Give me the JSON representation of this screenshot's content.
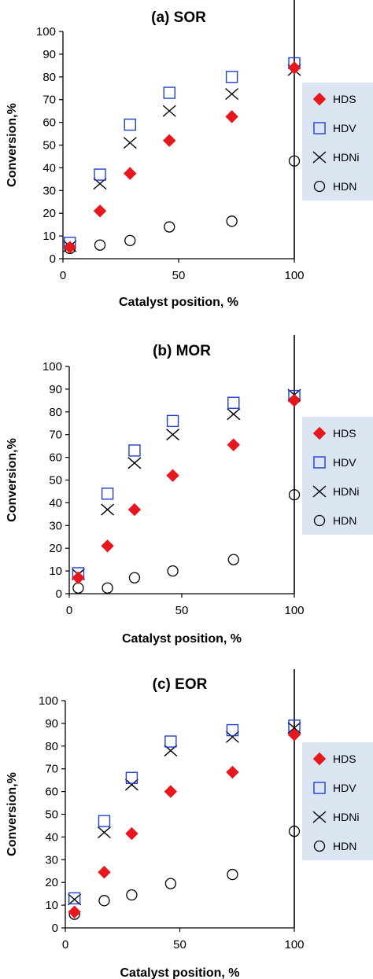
{
  "chart_data": [
    {
      "type": "scatter",
      "title": "(a) SOR",
      "xlabel": "Catalyst position, %",
      "ylabel": "Conversion,%",
      "xlim": [
        0,
        100
      ],
      "ylim": [
        0,
        100
      ],
      "xticks": [
        "0",
        "50",
        "100"
      ],
      "yticks": [
        "0",
        "10",
        "20",
        "30",
        "40",
        "50",
        "60",
        "70",
        "80",
        "90",
        "100"
      ],
      "grid": false,
      "legend_position": "right",
      "series": [
        {
          "name": "HDS",
          "marker": "diamond",
          "color": "#e8161d",
          "x": [
            3,
            16,
            29,
            46,
            73,
            100
          ],
          "y": [
            5,
            21,
            37.5,
            52,
            62.5,
            84
          ]
        },
        {
          "name": "HDV",
          "marker": "square",
          "color": "#1f3fd0",
          "x": [
            3,
            16,
            29,
            46,
            73,
            100
          ],
          "y": [
            7,
            37,
            59,
            73,
            80,
            86
          ]
        },
        {
          "name": "HDNi",
          "marker": "x",
          "color": "#000000",
          "x": [
            3,
            16,
            29,
            46,
            73,
            100
          ],
          "y": [
            5.5,
            33,
            51,
            65,
            72.5,
            83
          ]
        },
        {
          "name": "HDN",
          "marker": "circle",
          "color": "#000000",
          "x": [
            3,
            16,
            29,
            46,
            73,
            100
          ],
          "y": [
            4.5,
            6,
            8,
            14,
            16.5,
            43
          ]
        }
      ]
    },
    {
      "type": "scatter",
      "title": "(b) MOR",
      "xlabel": "Catalyst position, %",
      "ylabel": "Conversion,%",
      "xlim": [
        0,
        100
      ],
      "ylim": [
        0,
        100
      ],
      "xticks": [
        "0",
        "50",
        "100"
      ],
      "yticks": [
        "0",
        "10",
        "20",
        "30",
        "40",
        "50",
        "60",
        "70",
        "80",
        "90",
        "100"
      ],
      "grid": false,
      "legend_position": "right",
      "series": [
        {
          "name": "HDS",
          "marker": "diamond",
          "color": "#e8161d",
          "x": [
            4,
            17,
            29,
            46,
            73,
            100
          ],
          "y": [
            7,
            21,
            37,
            52,
            65.5,
            85
          ]
        },
        {
          "name": "HDV",
          "marker": "square",
          "color": "#1f3fd0",
          "x": [
            4,
            17,
            29,
            46,
            73,
            100
          ],
          "y": [
            9,
            44,
            63,
            76,
            84,
            87
          ]
        },
        {
          "name": "HDNi",
          "marker": "x",
          "color": "#000000",
          "x": [
            4,
            17,
            29,
            46,
            73,
            100
          ],
          "y": [
            8.5,
            37,
            57.5,
            70,
            79,
            87.5
          ]
        },
        {
          "name": "HDN",
          "marker": "circle",
          "color": "#000000",
          "x": [
            4,
            17,
            29,
            46,
            73,
            100
          ],
          "y": [
            2.5,
            2.5,
            7,
            10,
            15,
            43.5
          ]
        }
      ]
    },
    {
      "type": "scatter",
      "title": "(c) EOR",
      "xlabel": "Catalyst position, %",
      "ylabel": "Conversion,%",
      "xlim": [
        0,
        100
      ],
      "ylim": [
        0,
        100
      ],
      "xticks": [
        "0",
        "50",
        "100"
      ],
      "yticks": [
        "0",
        "10",
        "20",
        "30",
        "40",
        "50",
        "60",
        "70",
        "80",
        "90",
        "100"
      ],
      "grid": false,
      "legend_position": "right",
      "series": [
        {
          "name": "HDS",
          "marker": "diamond",
          "color": "#e8161d",
          "x": [
            4,
            17,
            29,
            46,
            73,
            100
          ],
          "y": [
            7,
            24.5,
            41.5,
            60,
            68.5,
            85
          ]
        },
        {
          "name": "HDV",
          "marker": "square",
          "color": "#1f3fd0",
          "x": [
            4,
            17,
            29,
            46,
            73,
            100
          ],
          "y": [
            13,
            47,
            66,
            82,
            87,
            89
          ]
        },
        {
          "name": "HDNi",
          "marker": "x",
          "color": "#000000",
          "x": [
            4,
            17,
            29,
            46,
            73,
            100
          ],
          "y": [
            12.5,
            42,
            63,
            78,
            84,
            88
          ]
        },
        {
          "name": "HDN",
          "marker": "circle",
          "color": "#000000",
          "x": [
            4,
            17,
            29,
            46,
            73,
            100
          ],
          "y": [
            6,
            12,
            14.5,
            19.5,
            23.5,
            42.5
          ]
        }
      ]
    }
  ],
  "theme": {
    "legend_background": "#dbe4f1",
    "axis_color": "#000000"
  }
}
